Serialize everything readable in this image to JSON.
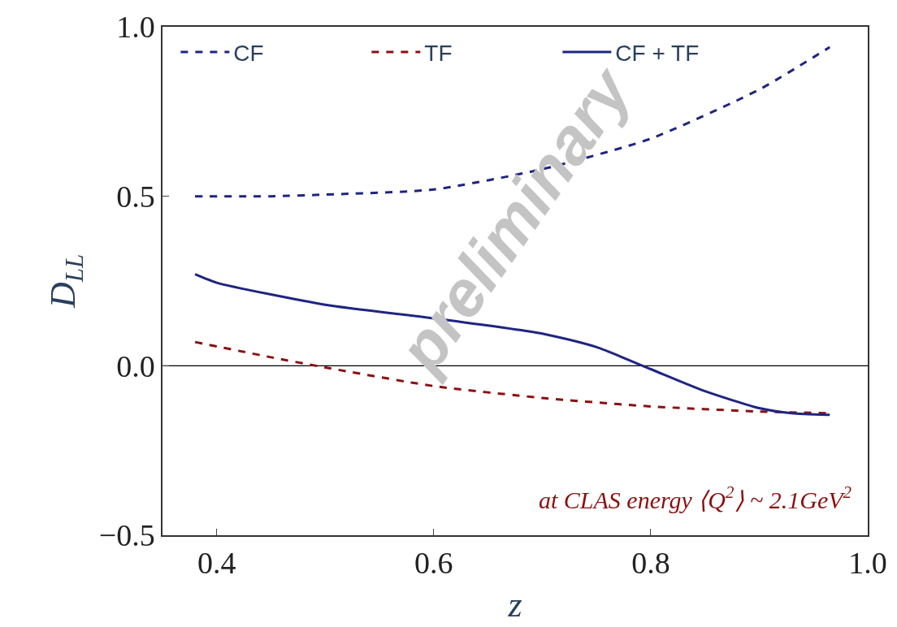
{
  "chart_data": {
    "type": "line",
    "xlabel": "z",
    "ylabel": "D$_{LL}$",
    "xlim": [
      0.35,
      1.0
    ],
    "xticks": [
      0.4,
      0.6,
      0.8,
      {
        "value": 1.0,
        "label": "1.0"
      }
    ],
    "ylim": [
      -0.5,
      1.0
    ],
    "yticks": [
      -0.5,
      0.5,
      {
        "value": 1.0,
        "label": "1.0"
      },
      {
        "value": 0.0,
        "label": "0.0"
      }
    ],
    "grid": false,
    "legend": "top left",
    "series": [
      {
        "name": "CF",
        "color": "#1f2580",
        "line_style": "dashed",
        "x": [
          0.38,
          0.45,
          0.5,
          0.6,
          0.7,
          0.8,
          0.9,
          0.965
        ],
        "values": [
          0.5,
          0.5,
          0.505,
          0.52,
          0.58,
          0.67,
          0.815,
          0.94
        ]
      },
      {
        "name": "TF",
        "color": "#8b1010",
        "line_style": "dashed",
        "x": [
          0.38,
          0.45,
          0.5,
          0.6,
          0.7,
          0.8,
          0.9,
          0.965
        ],
        "values": [
          0.07,
          0.025,
          -0.005,
          -0.06,
          -0.095,
          -0.12,
          -0.135,
          -0.14
        ]
      },
      {
        "name": "CF + TF",
        "color": "#1f2580",
        "line_style": "solid",
        "x": [
          0.38,
          0.4,
          0.5,
          0.6,
          0.7,
          0.75,
          0.8,
          0.85,
          0.9,
          0.93,
          0.965
        ],
        "values": [
          0.27,
          0.245,
          0.18,
          0.14,
          0.095,
          0.055,
          -0.01,
          -0.075,
          -0.125,
          -0.14,
          -0.145
        ]
      }
    ],
    "ref_lines": [
      {
        "axis": "y",
        "value": 0,
        "color": "#000000"
      }
    ],
    "annotations": [
      "at CLAS energy ⟨Q$^{2}$⟩ ~ 2.1GeV$^{2}$",
      "preliminary"
    ]
  }
}
